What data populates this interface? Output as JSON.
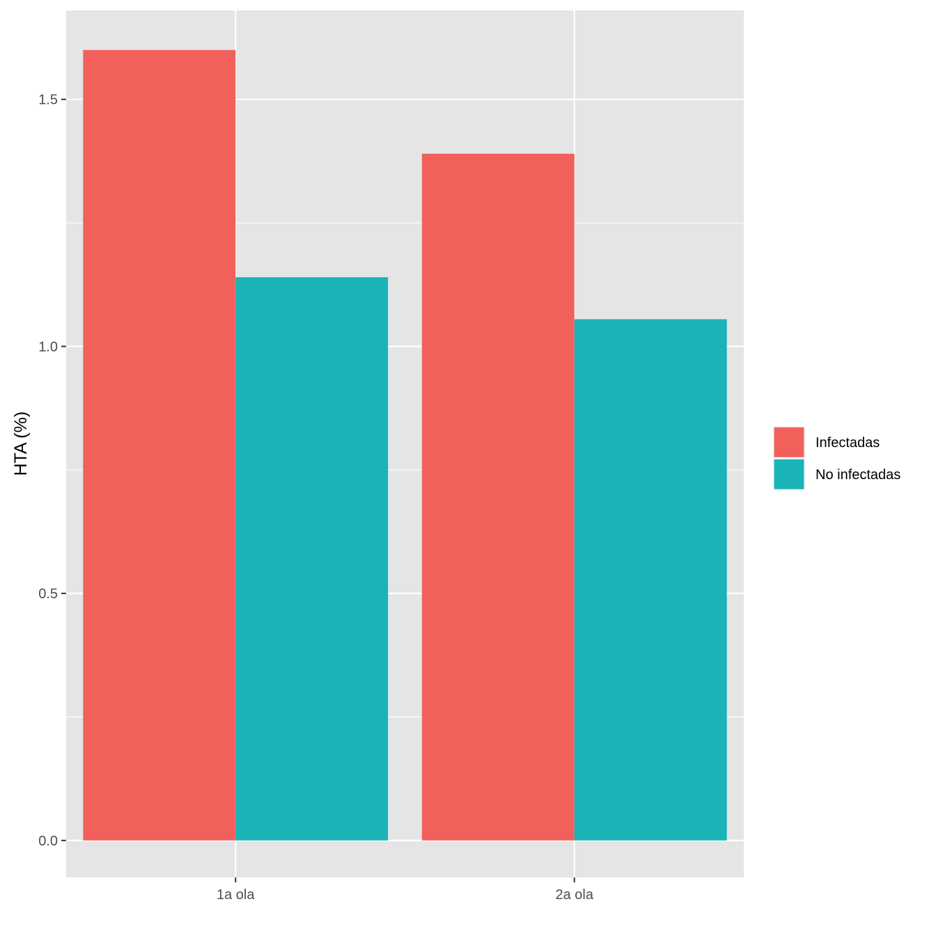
{
  "chart_data": {
    "type": "bar",
    "title": "",
    "xlabel": "",
    "ylabel": "HTA (%)",
    "categories": [
      "1a ola",
      "2a ola"
    ],
    "series": [
      {
        "name": "Infectadas",
        "color": "#F2605B",
        "values": [
          1.6,
          1.39
        ]
      },
      {
        "name": "No infectadas",
        "color": "#1AB3B8",
        "values": [
          1.14,
          1.055
        ]
      }
    ],
    "ylim": [
      -0.075,
      1.68
    ],
    "yticks": [
      0.0,
      0.5,
      1.0,
      1.5
    ],
    "ytick_labels": [
      "0.0",
      "0.5",
      "1.0",
      "1.5"
    ],
    "grid": true,
    "legend_position": "right",
    "panel_background": "#E5E5E5",
    "grid_color": "#FFFFFF"
  }
}
